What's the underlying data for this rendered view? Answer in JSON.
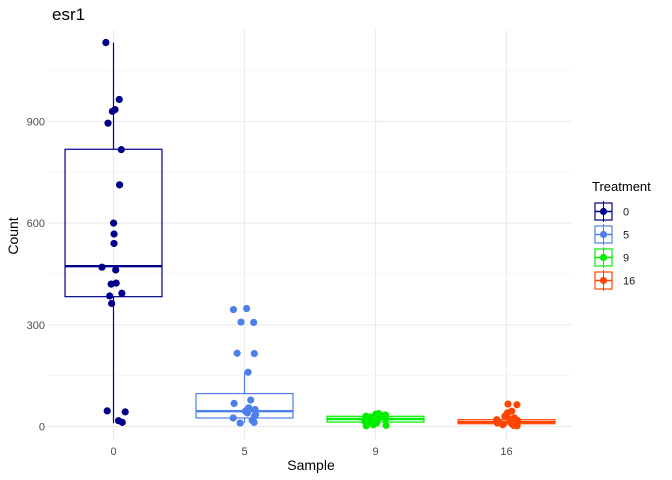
{
  "chart_data": {
    "type": "boxplot",
    "title": "esr1",
    "xlabel": "Sample",
    "ylabel": "Count",
    "categories": [
      "0",
      "5",
      "9",
      "16"
    ],
    "y_ticks": [
      0,
      300,
      600,
      900
    ],
    "ylim": [
      -40,
      1170
    ],
    "grid": true,
    "legend": {
      "title": "Treatment",
      "position": "right",
      "entries": [
        {
          "label": "0",
          "color": "#00008B"
        },
        {
          "label": "5",
          "color": "#4F7FEA"
        },
        {
          "label": "9",
          "color": "#00EE00"
        },
        {
          "label": "16",
          "color": "#FF4500"
        }
      ]
    },
    "series": [
      {
        "category": "0",
        "color": "#00008B",
        "box": {
          "q1": 383,
          "median": 473,
          "q3": 818,
          "whisker_low": 10,
          "whisker_high": 1133
        },
        "points": [
          1133,
          965,
          935,
          930,
          895,
          817,
          713,
          600,
          568,
          540,
          470,
          462,
          423,
          420,
          393,
          385,
          363,
          46,
          43,
          17,
          12
        ]
      },
      {
        "category": "5",
        "color": "#4F7FEA",
        "box": {
          "q1": 25,
          "median": 45,
          "q3": 97,
          "whisker_low": 10,
          "whisker_high": 160
        },
        "points": [
          348,
          345,
          308,
          307,
          216,
          215,
          160,
          78,
          68,
          55,
          50,
          47,
          45,
          43,
          40,
          35,
          30,
          25,
          18,
          12,
          10
        ]
      },
      {
        "category": "9",
        "color": "#00EE00",
        "box": {
          "q1": 13,
          "median": 22,
          "q3": 30,
          "whisker_low": 2,
          "whisker_high": 38
        },
        "points": [
          38,
          36,
          34,
          32,
          30,
          28,
          27,
          25,
          23,
          22,
          20,
          18,
          16,
          14,
          12,
          10,
          8,
          5,
          3,
          2
        ]
      },
      {
        "category": "16",
        "color": "#FF4500",
        "box": {
          "q1": 8,
          "median": 13,
          "q3": 20,
          "whisker_low": 2,
          "whisker_high": 32
        },
        "points": [
          66,
          64,
          45,
          40,
          30,
          25,
          22,
          20,
          18,
          16,
          15,
          13,
          12,
          10,
          9,
          8,
          6,
          5,
          3,
          2
        ]
      }
    ]
  }
}
